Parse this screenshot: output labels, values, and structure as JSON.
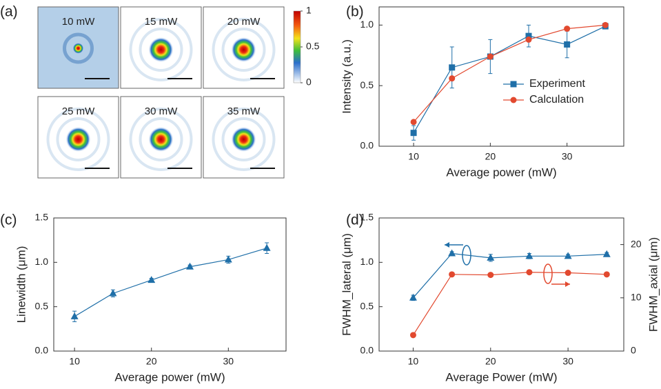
{
  "chart_data": [
    {
      "type": "image-grid",
      "label": "(a)",
      "panels": [
        "10 mW",
        "15 mW",
        "20 mW",
        "25 mW",
        "30 mW",
        "35 mW"
      ],
      "zlim": [
        0,
        1
      ],
      "zticks": [
        0,
        0.5,
        1
      ]
    },
    {
      "type": "line",
      "label": "(b)",
      "xlabel": "Average power (mW)",
      "ylabel": "Intensity (a.u.)",
      "x": [
        10,
        15,
        20,
        25,
        30,
        35
      ],
      "series": [
        {
          "name": "Experiment",
          "color": "#1f6fa8",
          "marker": "square",
          "values": [
            0.11,
            0.65,
            0.74,
            0.91,
            0.84,
            0.99
          ],
          "errors": [
            0.06,
            0.17,
            0.14,
            0.09,
            0.11,
            0.02
          ]
        },
        {
          "name": "Calculation",
          "color": "#e2492f",
          "marker": "circle",
          "values": [
            0.2,
            0.56,
            0.74,
            0.88,
            0.97,
            1.0
          ]
        }
      ],
      "xlim": [
        5.5,
        37.4
      ],
      "ylim": [
        0,
        1.15
      ],
      "xticks": [
        10,
        20,
        30
      ],
      "yticks": [
        {
          "value": 0,
          "label": "0.0"
        },
        {
          "value": 0.5,
          "label": "0.5"
        },
        {
          "value": 1,
          "label": "1.0"
        }
      ],
      "legend": "lower right"
    },
    {
      "type": "line",
      "label": "(c)",
      "xlabel": "Average power (mW)",
      "ylabel": "Linewidth (μm)",
      "x": [
        10,
        15,
        20,
        25,
        30,
        35
      ],
      "series": [
        {
          "color": "#1f6fa8",
          "marker": "triangle",
          "values": [
            0.39,
            0.65,
            0.8,
            0.95,
            1.03,
            1.16
          ],
          "errors": [
            0.06,
            0.04,
            0.02,
            0.02,
            0.04,
            0.06
          ]
        }
      ],
      "xlim": [
        7.3,
        37.5
      ],
      "ylim": [
        0,
        1.5
      ],
      "xticks": [
        10,
        20,
        30
      ],
      "yticks": [
        {
          "value": 0,
          "label": "0.0"
        },
        {
          "value": 0.5,
          "label": "0.5"
        },
        {
          "value": 1,
          "label": "1.0"
        },
        {
          "value": 1.5,
          "label": "1.5"
        }
      ]
    },
    {
      "type": "line",
      "label": "(d)",
      "xlabel": "Average Power (mW)",
      "ylabel": "FWHM_lateral (μm)",
      "y2label": "FWHM_axial (μm)",
      "x": [
        10,
        15,
        20,
        25,
        30,
        35
      ],
      "series": [
        {
          "color": "#1f6fa8",
          "marker": "triangle",
          "values": [
            0.6,
            1.1,
            1.05,
            1.07,
            1.07,
            1.09
          ],
          "errors": [
            0.03,
            0.02,
            0.04,
            0.03,
            0.02,
            0.02
          ]
        },
        {
          "color": "#e2492f",
          "marker": "circle",
          "axis": "y2",
          "values": [
            3,
            14.4,
            14.3,
            14.8,
            14.7,
            14.4
          ]
        }
      ],
      "xlim": [
        5.6,
        37.2
      ],
      "ylim": [
        0,
        1.5
      ],
      "y2lim": [
        0,
        25
      ],
      "xticks": [
        10,
        20,
        30
      ],
      "yticks": [
        {
          "value": 0,
          "label": "0.0"
        },
        {
          "value": 0.5,
          "label": "0.5"
        },
        {
          "value": 1,
          "label": "1.0"
        },
        {
          "value": 1.5,
          "label": "1.5"
        }
      ],
      "y2ticks": [
        0,
        10,
        20
      ]
    }
  ]
}
